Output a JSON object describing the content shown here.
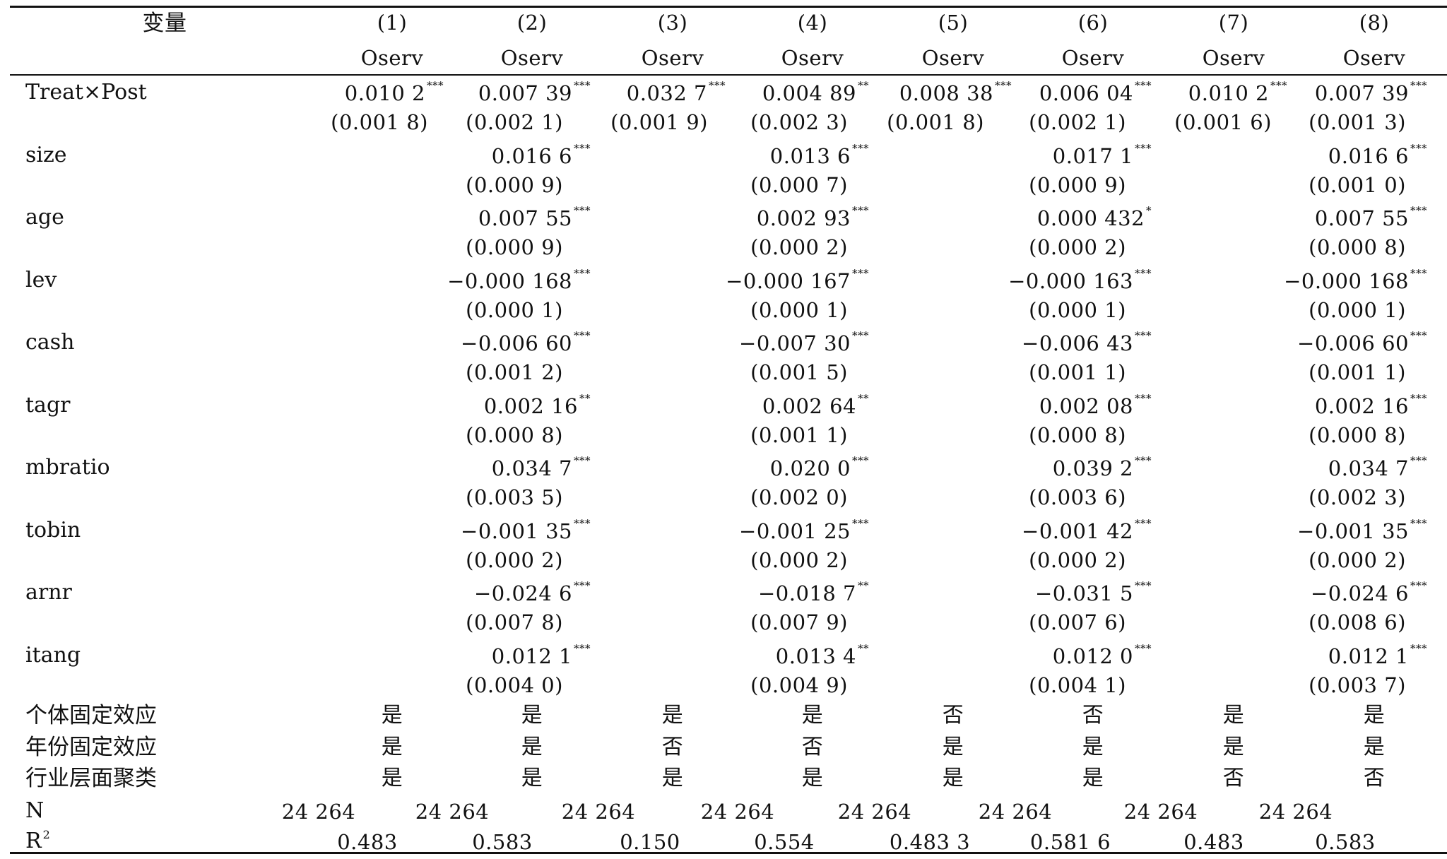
{
  "header": {
    "variable_label": "变量",
    "columns": [
      {
        "num": "(1)",
        "dep": "Oserv"
      },
      {
        "num": "(2)",
        "dep": "Oserv"
      },
      {
        "num": "(3)",
        "dep": "Oserv"
      },
      {
        "num": "(4)",
        "dep": "Oserv"
      },
      {
        "num": "(5)",
        "dep": "Oserv"
      },
      {
        "num": "(6)",
        "dep": "Oserv"
      },
      {
        "num": "(7)",
        "dep": "Oserv"
      },
      {
        "num": "(8)",
        "dep": "Oserv"
      }
    ]
  },
  "rows": [
    {
      "name": "Treat×Post",
      "coef": [
        {
          "v": "0.010 2",
          "s": "***"
        },
        {
          "v": "0.007 39",
          "s": "***"
        },
        {
          "v": "0.032 7",
          "s": "***"
        },
        {
          "v": "0.004 89",
          "s": "**"
        },
        {
          "v": "0.008 38",
          "s": "***"
        },
        {
          "v": "0.006 04",
          "s": "***"
        },
        {
          "v": "0.010 2",
          "s": "***"
        },
        {
          "v": "0.007 39",
          "s": "***"
        }
      ],
      "se": [
        "(0.001 8)",
        "(0.002 1)",
        "(0.001 9)",
        "(0.002 3)",
        "(0.001 8)",
        "(0.002 1)",
        "(0.001 6)",
        "(0.001 3)"
      ]
    },
    {
      "name": "size",
      "coef": [
        null,
        {
          "v": "0.016 6",
          "s": "***"
        },
        null,
        {
          "v": "0.013 6",
          "s": "***"
        },
        null,
        {
          "v": "0.017 1",
          "s": "***"
        },
        null,
        {
          "v": "0.016 6",
          "s": "***"
        }
      ],
      "se": [
        "",
        "(0.000 9)",
        "",
        "(0.000 7)",
        "",
        "(0.000 9)",
        "",
        "(0.001 0)"
      ]
    },
    {
      "name": "age",
      "coef": [
        null,
        {
          "v": "0.007 55",
          "s": "***"
        },
        null,
        {
          "v": "0.002 93",
          "s": "***"
        },
        null,
        {
          "v": "0.000 432",
          "s": "*"
        },
        null,
        {
          "v": "0.007 55",
          "s": "***"
        }
      ],
      "se": [
        "",
        "(0.000 9)",
        "",
        "(0.000 2)",
        "",
        "(0.000 2)",
        "",
        "(0.000 8)"
      ]
    },
    {
      "name": "lev",
      "coef": [
        null,
        {
          "v": "−0.000 168",
          "s": "***"
        },
        null,
        {
          "v": "−0.000 167",
          "s": "***"
        },
        null,
        {
          "v": "−0.000 163",
          "s": "***"
        },
        null,
        {
          "v": "−0.000 168",
          "s": "***"
        }
      ],
      "se": [
        "",
        "(0.000 1)",
        "",
        "(0.000 1)",
        "",
        "(0.000 1)",
        "",
        "(0.000 1)"
      ]
    },
    {
      "name": "cash",
      "coef": [
        null,
        {
          "v": "−0.006 60",
          "s": "***"
        },
        null,
        {
          "v": "−0.007 30",
          "s": "***"
        },
        null,
        {
          "v": "−0.006 43",
          "s": "***"
        },
        null,
        {
          "v": "−0.006 60",
          "s": "***"
        }
      ],
      "se": [
        "",
        "(0.001 2)",
        "",
        "(0.001 5)",
        "",
        "(0.001 1)",
        "",
        "(0.001 1)"
      ]
    },
    {
      "name": "tagr",
      "coef": [
        null,
        {
          "v": "0.002 16",
          "s": "**"
        },
        null,
        {
          "v": "0.002 64",
          "s": "**"
        },
        null,
        {
          "v": "0.002 08",
          "s": "***"
        },
        null,
        {
          "v": "0.002 16",
          "s": "***"
        }
      ],
      "se": [
        "",
        "(0.000 8)",
        "",
        "(0.001 1)",
        "",
        "(0.000 8)",
        "",
        "(0.000 8)"
      ]
    },
    {
      "name": "mbratio",
      "coef": [
        null,
        {
          "v": "0.034 7",
          "s": "***"
        },
        null,
        {
          "v": "0.020 0",
          "s": "***"
        },
        null,
        {
          "v": "0.039 2",
          "s": "***"
        },
        null,
        {
          "v": "0.034 7",
          "s": "***"
        }
      ],
      "se": [
        "",
        "(0.003 5)",
        "",
        "(0.002 0)",
        "",
        "(0.003 6)",
        "",
        "(0.002 3)"
      ]
    },
    {
      "name": "tobin",
      "coef": [
        null,
        {
          "v": "−0.001 35",
          "s": "***"
        },
        null,
        {
          "v": "−0.001 25",
          "s": "***"
        },
        null,
        {
          "v": "−0.001 42",
          "s": "***"
        },
        null,
        {
          "v": "−0.001 35",
          "s": "***"
        }
      ],
      "se": [
        "",
        "(0.000 2)",
        "",
        "(0.000 2)",
        "",
        "(0.000 2)",
        "",
        "(0.000 2)"
      ]
    },
    {
      "name": "arnr",
      "coef": [
        null,
        {
          "v": "−0.024 6",
          "s": "***"
        },
        null,
        {
          "v": "−0.018 7",
          "s": "**"
        },
        null,
        {
          "v": "−0.031 5",
          "s": "***"
        },
        null,
        {
          "v": "−0.024 6",
          "s": "***"
        }
      ],
      "se": [
        "",
        "(0.007 8)",
        "",
        "(0.007 9)",
        "",
        "(0.007 6)",
        "",
        "(0.008 6)"
      ]
    },
    {
      "name": "itang",
      "coef": [
        null,
        {
          "v": "0.012 1",
          "s": "***"
        },
        null,
        {
          "v": "0.013 4",
          "s": "**"
        },
        null,
        {
          "v": "0.012 0",
          "s": "***"
        },
        null,
        {
          "v": "0.012 1",
          "s": "***"
        }
      ],
      "se": [
        "",
        "(0.004 0)",
        "",
        "(0.004 9)",
        "",
        "(0.004 1)",
        "",
        "(0.003 7)"
      ]
    }
  ],
  "fixed_effects": [
    {
      "name": "个体固定效应",
      "values": [
        "是",
        "是",
        "是",
        "是",
        "否",
        "否",
        "是",
        "是"
      ]
    },
    {
      "name": "年份固定效应",
      "values": [
        "是",
        "是",
        "否",
        "否",
        "是",
        "是",
        "是",
        "是"
      ]
    },
    {
      "name": "行业层面聚类",
      "values": [
        "是",
        "是",
        "是",
        "是",
        "是",
        "是",
        "否",
        "否"
      ]
    }
  ],
  "n_row": {
    "name": "N",
    "values": [
      "24 264",
      "24 264",
      "24 264",
      "24 264",
      "24 264",
      "24 264",
      "24 264",
      "24 264"
    ]
  },
  "r2_row": {
    "name": "R",
    "sup": "2",
    "values": [
      "0.483",
      "0.583",
      "0.150",
      "0.554",
      "0.483 3",
      "0.581 6",
      "0.483",
      "0.583"
    ]
  }
}
